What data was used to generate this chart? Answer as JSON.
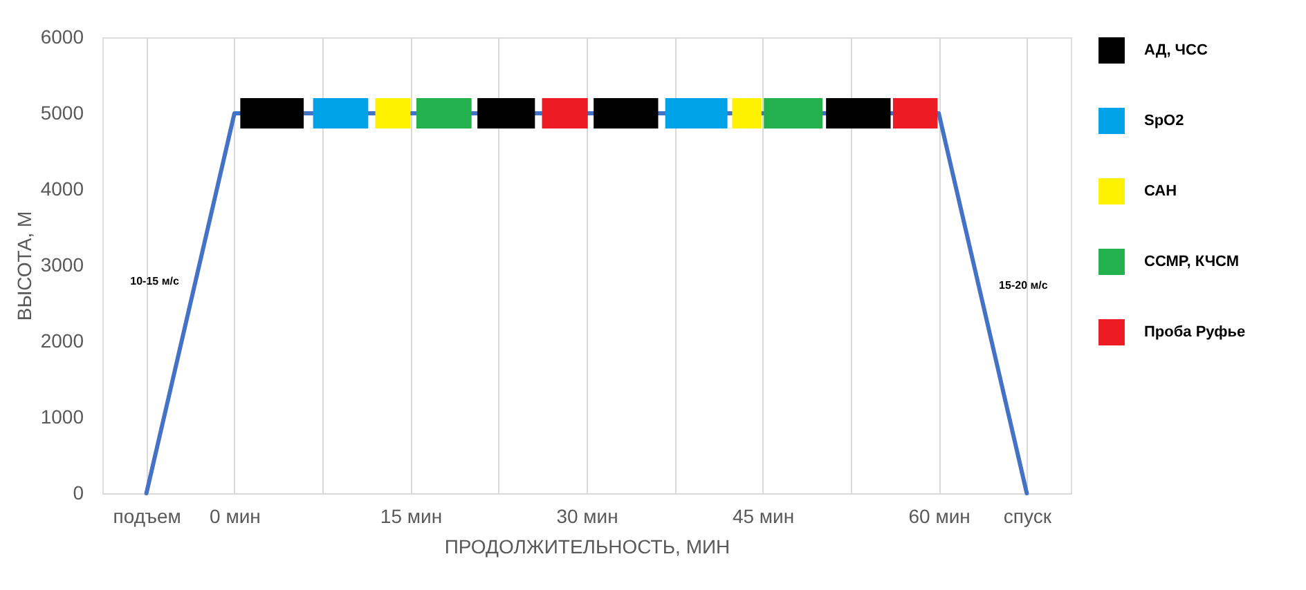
{
  "chart_data": {
    "type": "line",
    "xlabel": "ПРОДОЛЖИТЕЛЬНОСТЬ, МИН",
    "ylabel": "ВЫСОТА, М",
    "xlim": [
      -11.25,
      71.25
    ],
    "xticks": [
      {
        "value": -7.5,
        "label": "подъем"
      },
      {
        "value": 0,
        "label": "0 мин"
      },
      {
        "value": 7.5,
        "label": null
      },
      {
        "value": 15,
        "label": "15 мин"
      },
      {
        "value": 22.5,
        "label": null
      },
      {
        "value": 30,
        "label": "30 мин"
      },
      {
        "value": 37.5,
        "label": null
      },
      {
        "value": 45,
        "label": "45 мин"
      },
      {
        "value": 52.5,
        "label": null
      },
      {
        "value": 60,
        "label": "60 мин"
      },
      {
        "value": 67.5,
        "label": "спуск"
      }
    ],
    "ylim": [
      0,
      6000
    ],
    "yticks": [
      0,
      1000,
      2000,
      3000,
      4000,
      5000,
      6000
    ],
    "grid": "x",
    "legend": "top right",
    "marker": "none",
    "line_style": "solid",
    "series": [
      {
        "color": "#4472c4",
        "x": [
          -7.5,
          0,
          60,
          67.5
        ],
        "values": [
          0,
          5000,
          5000,
          0
        ]
      },
      {
        "name": "АД, ЧСС",
        "color": "#000000",
        "x": [
          0.5,
          5.9,
          13,
          20.7,
          25.6,
          28,
          30.6,
          36.1,
          43,
          50.4,
          55.9
        ],
        "values": [
          5000,
          5000,
          null,
          5000,
          5000,
          null,
          5000,
          5000,
          null,
          5000,
          5000
        ]
      },
      {
        "name": "SpO2",
        "color": "#00a2e8",
        "x": [
          6.7,
          11.4,
          24,
          36.7,
          42.0
        ],
        "values": [
          5000,
          5000,
          null,
          5000,
          5000
        ]
      },
      {
        "name": "САН",
        "color": "#fff200",
        "x": [
          12.0,
          15.0,
          28,
          42.4,
          44.9
        ],
        "values": [
          5000,
          5000,
          null,
          5000,
          5000
        ]
      },
      {
        "name": "ССМР, КЧСМ",
        "color": "#22b14c",
        "x": [
          15.5,
          20.2,
          32,
          45.1,
          50.1
        ],
        "values": [
          5000,
          5000,
          null,
          5000,
          5000
        ]
      },
      {
        "name": "Проба Руфье",
        "color": "#ed1c24",
        "x": [
          26.2,
          30.1,
          43,
          56.1,
          59.9
        ],
        "values": [
          5000,
          5000,
          null,
          5000,
          5000
        ]
      }
    ],
    "annotations": [
      "10-15 м/с",
      "15-20 м/с"
    ]
  }
}
